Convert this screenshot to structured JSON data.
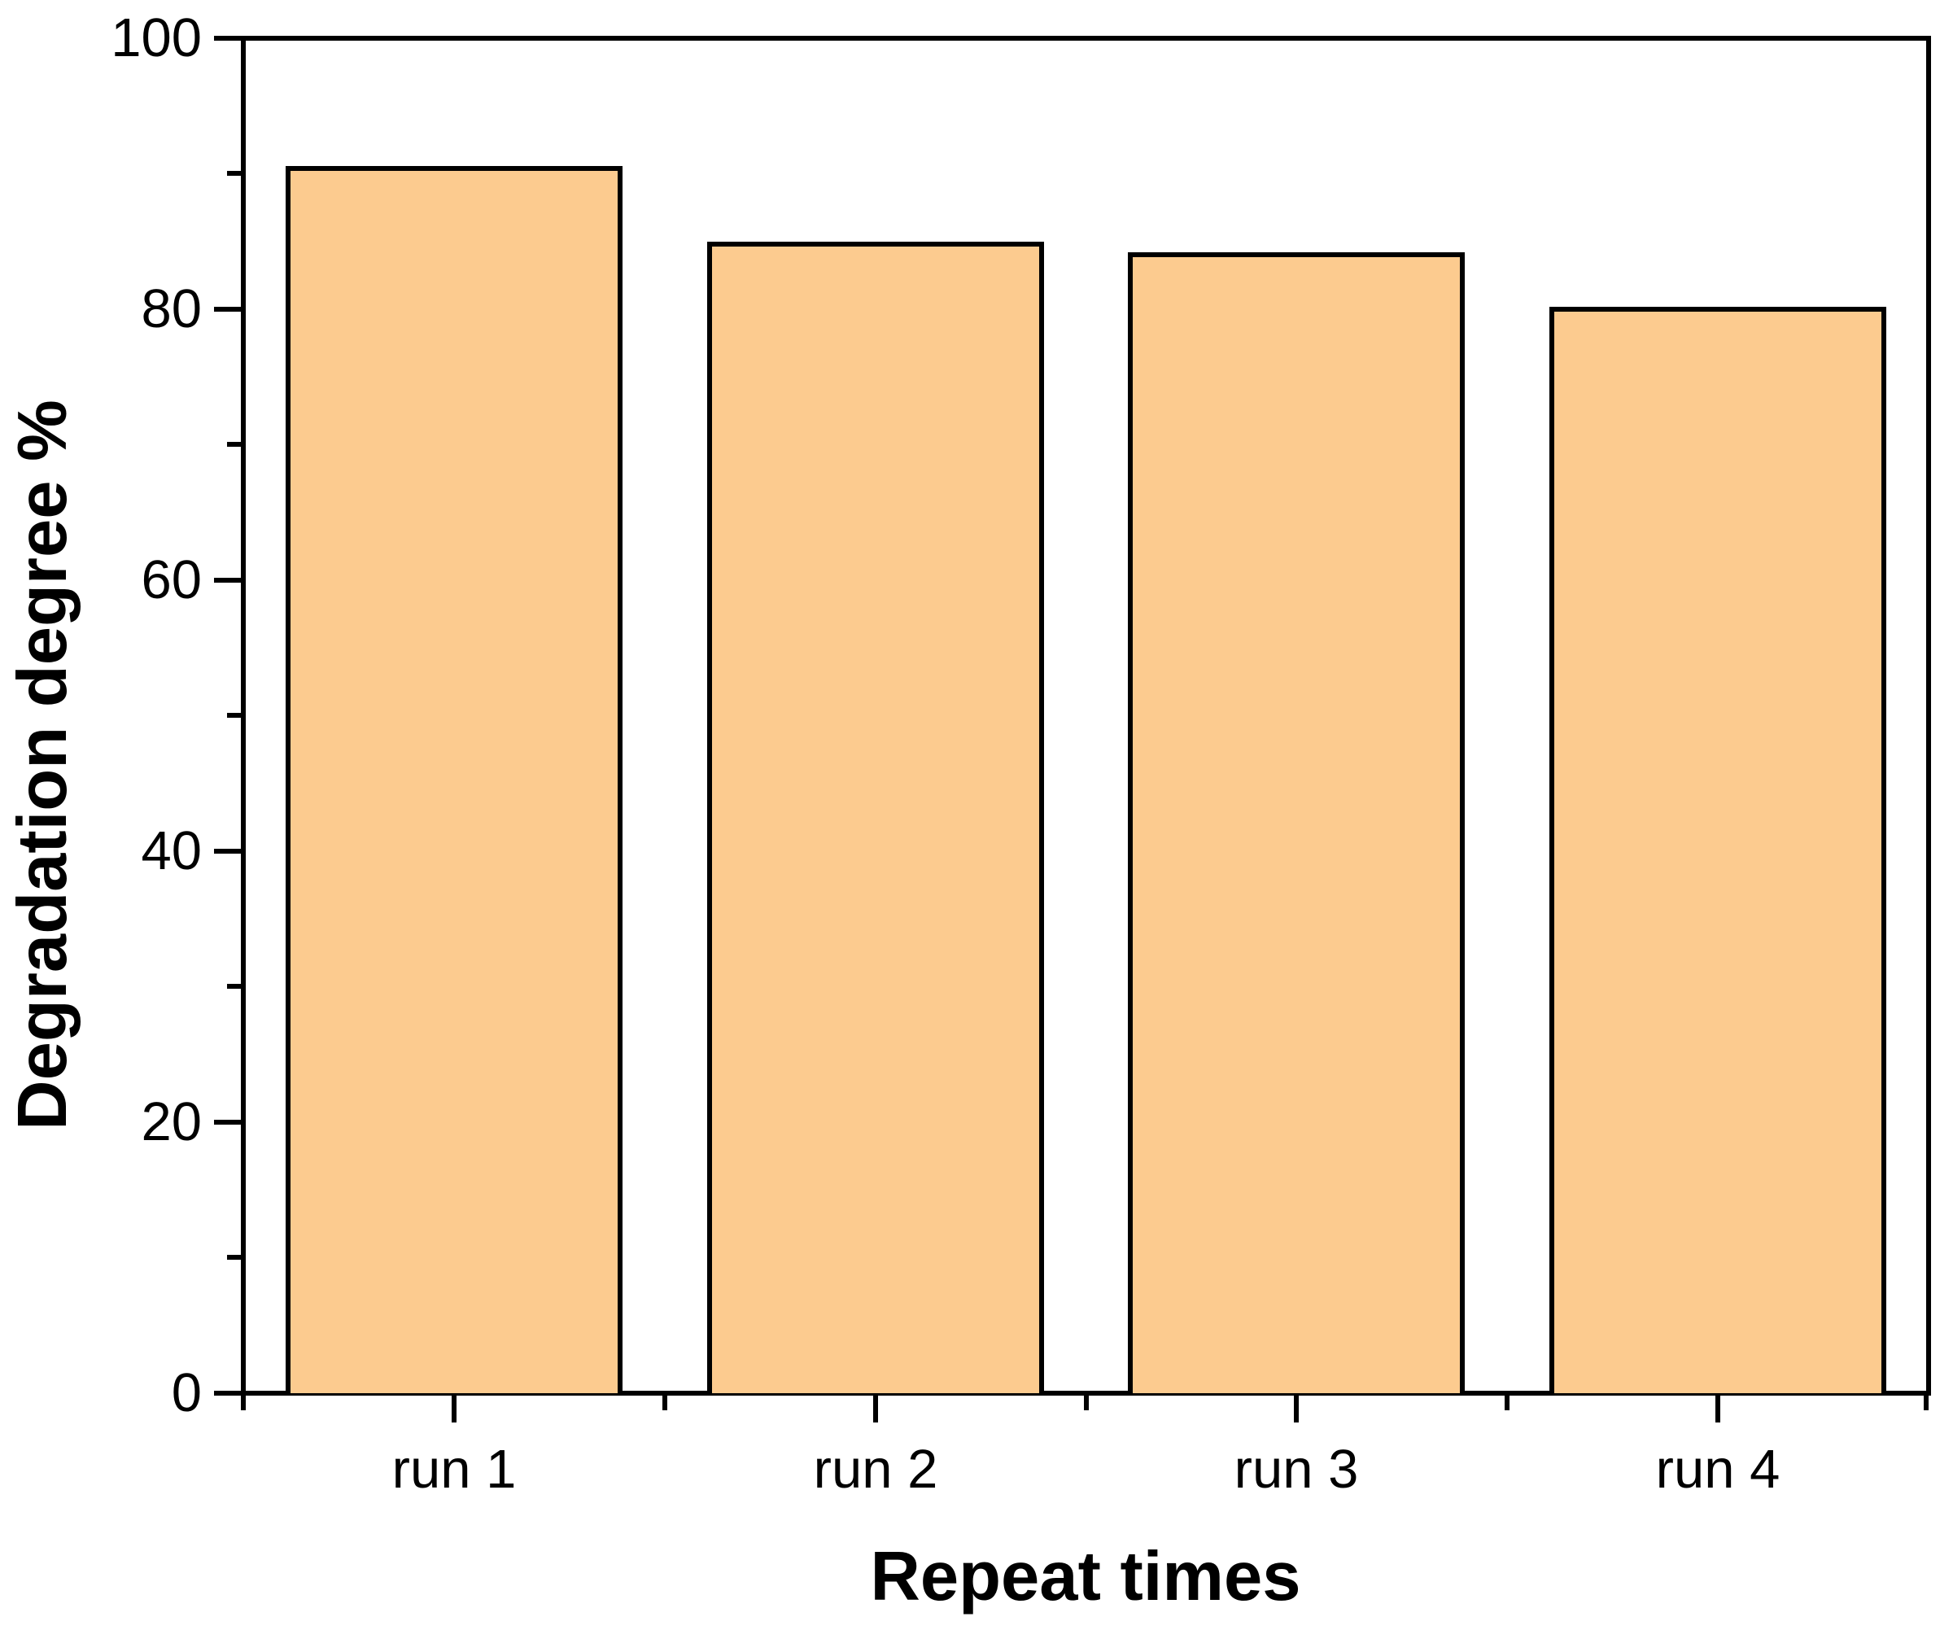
{
  "chart_data": {
    "type": "bar",
    "title": "",
    "xlabel": "Repeat times",
    "ylabel": "Degradation degree %",
    "categories": [
      "run 1",
      "run 2",
      "run 3",
      "run 4"
    ],
    "values": [
      90.6,
      85.0,
      84.2,
      80.2
    ],
    "ylim": [
      0,
      100
    ],
    "y_major_ticks": [
      0,
      20,
      40,
      60,
      80,
      100
    ],
    "y_minor_ticks": [
      10,
      30,
      50,
      70,
      90
    ],
    "y_tick_labels_desc": [
      "100",
      "80",
      "60",
      "40",
      "20",
      "0"
    ],
    "x_minor_ticks_at_category_boundaries": true,
    "grid": false,
    "legend": false,
    "bar_fill": "#FCCB8F",
    "bar_border": "#000000",
    "frame_color": "#000000",
    "bar_width_fraction": 0.8
  }
}
